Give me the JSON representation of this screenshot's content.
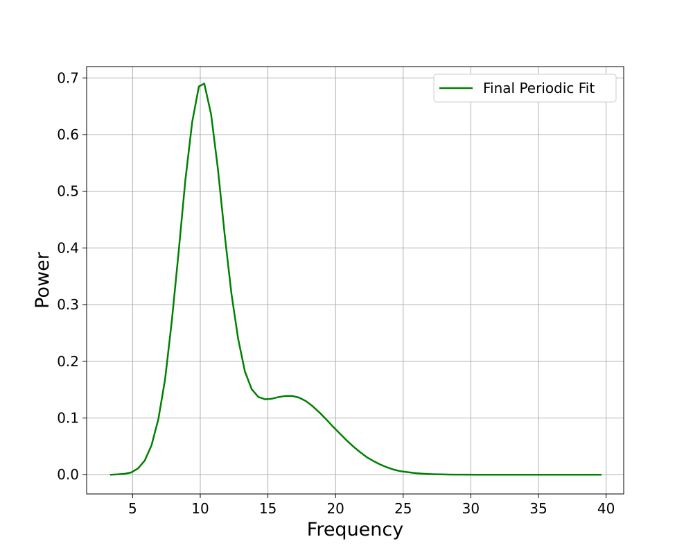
{
  "chart_data": {
    "type": "line",
    "title": "",
    "xlabel": "Frequency",
    "ylabel": "Power",
    "xlim": [
      1.6,
      41.3
    ],
    "ylim": [
      -0.034,
      0.72
    ],
    "xticks": [
      5,
      10,
      15,
      20,
      25,
      30,
      35,
      40
    ],
    "yticks": [
      0.0,
      0.1,
      0.2,
      0.3,
      0.4,
      0.5,
      0.6,
      0.7
    ],
    "xtick_labels": [
      "5",
      "10",
      "15",
      "20",
      "25",
      "30",
      "35",
      "40"
    ],
    "ytick_labels": [
      "0.0",
      "0.1",
      "0.2",
      "0.3",
      "0.4",
      "0.5",
      "0.6",
      "0.7"
    ],
    "grid": true,
    "legend_position": "upper right",
    "series": [
      {
        "name": "Final Periodic Fit",
        "color": "#008000",
        "x": [
          3.4,
          3.9,
          4.4,
          4.9,
          5.4,
          5.9,
          6.4,
          6.9,
          7.4,
          7.9,
          8.4,
          8.9,
          9.4,
          9.9,
          10.3,
          10.8,
          11.3,
          11.8,
          12.3,
          12.8,
          13.3,
          13.8,
          14.3,
          14.8,
          15.3,
          15.8,
          16.3,
          16.8,
          17.3,
          17.8,
          18.3,
          18.8,
          19.3,
          19.8,
          20.3,
          20.8,
          21.3,
          21.8,
          22.3,
          22.8,
          23.3,
          23.8,
          24.3,
          24.8,
          25.3,
          25.8,
          26.3,
          26.8,
          27.3,
          27.8,
          28.3,
          28.8,
          29.5,
          30.5,
          32.0,
          34.0,
          36.0,
          38.0,
          39.6
        ],
        "y": [
          0.0,
          0.0005,
          0.0015,
          0.004,
          0.011,
          0.025,
          0.052,
          0.098,
          0.168,
          0.272,
          0.392,
          0.52,
          0.622,
          0.685,
          0.69,
          0.636,
          0.54,
          0.425,
          0.32,
          0.24,
          0.182,
          0.151,
          0.137,
          0.133,
          0.134,
          0.137,
          0.139,
          0.139,
          0.136,
          0.13,
          0.121,
          0.11,
          0.098,
          0.085,
          0.073,
          0.061,
          0.05,
          0.04,
          0.031,
          0.024,
          0.018,
          0.013,
          0.009,
          0.006,
          0.0045,
          0.003,
          0.002,
          0.0013,
          0.0008,
          0.0005,
          0.0003,
          0.0002,
          0.0001,
          0.0,
          0.0,
          0.0,
          0.0,
          0.0,
          0.0
        ]
      }
    ]
  }
}
